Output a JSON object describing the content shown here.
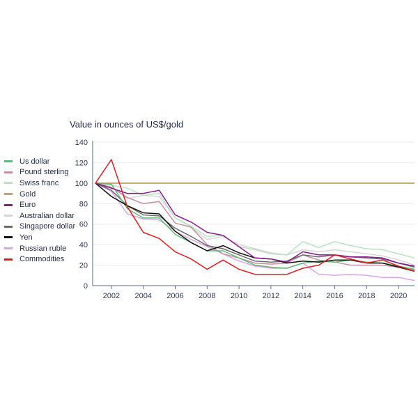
{
  "chart_data": {
    "type": "line",
    "title": "Value in ounces of US$/gold",
    "xlabel": "",
    "ylabel": "",
    "ylim": [
      0,
      140
    ],
    "xlim": [
      2001,
      2021
    ],
    "yticks": [
      "0",
      "20",
      "40",
      "60",
      "80",
      "100",
      "120",
      "140"
    ],
    "xticks": [
      "2002",
      "2004",
      "2006",
      "2008",
      "2010",
      "2012",
      "2014",
      "2016",
      "2018",
      "2020"
    ],
    "grid": true,
    "legend_position": "left",
    "x": [
      2001,
      2002,
      2003,
      2004,
      2005,
      2006,
      2007,
      2008,
      2009,
      2010,
      2011,
      2012,
      2013,
      2014,
      2015,
      2016,
      2017,
      2018,
      2019,
      2020,
      2021
    ],
    "series": [
      {
        "name": "Us dollar",
        "color": "#5dbb73",
        "values": [
          100,
          99,
          75,
          66,
          66,
          50,
          42,
          34,
          34,
          27,
          20,
          18,
          17,
          22,
          24,
          23,
          25,
          23,
          22,
          19,
          16
        ]
      },
      {
        "name": "Pound sterling",
        "color": "#c48f9f",
        "values": [
          100,
          96,
          86,
          80,
          82,
          61,
          57,
          40,
          31,
          27,
          22,
          21,
          22,
          30,
          25,
          23,
          20,
          20,
          20,
          18,
          15
        ]
      },
      {
        "name": "Swiss franc",
        "color": "#b9e2c4",
        "values": [
          100,
          98,
          95,
          88,
          90,
          66,
          58,
          48,
          49,
          38,
          35,
          31,
          30,
          43,
          37,
          43,
          39,
          36,
          35,
          31,
          27
        ]
      },
      {
        "name": "Gold",
        "color": "#c4a46b",
        "values": [
          100,
          100,
          100,
          100,
          100,
          100,
          100,
          100,
          100,
          100,
          100,
          100,
          100,
          100,
          100,
          100,
          100,
          100,
          100,
          100,
          100
        ]
      },
      {
        "name": "Euro",
        "color": "#8b1a8c",
        "values": [
          100,
          95,
          90,
          90,
          93,
          69,
          62,
          52,
          49,
          38,
          27,
          26,
          23,
          33,
          30,
          30,
          28,
          28,
          27,
          22,
          19
        ]
      },
      {
        "name": "Australian dollar",
        "color": "#d6d6d6",
        "values": [
          100,
          96,
          85,
          88,
          87,
          66,
          57,
          45,
          48,
          40,
          36,
          32,
          30,
          35,
          33,
          35,
          33,
          31,
          29,
          25,
          20
        ]
      },
      {
        "name": "Singapore dollar",
        "color": "#6b6b6b",
        "values": [
          100,
          93,
          78,
          69,
          68,
          56,
          48,
          39,
          36,
          30,
          24,
          23,
          24,
          30,
          28,
          30,
          28,
          27,
          26,
          22,
          18
        ]
      },
      {
        "name": "Yen",
        "color": "#111111",
        "values": [
          100,
          87,
          78,
          71,
          70,
          53,
          42,
          34,
          39,
          32,
          27,
          26,
          22,
          24,
          23,
          25,
          25,
          22,
          22,
          18,
          14
        ]
      },
      {
        "name": "Russian ruble",
        "color": "#dca4e8",
        "values": [
          100,
          92,
          70,
          65,
          64,
          53,
          45,
          38,
          31,
          24,
          19,
          17,
          17,
          22,
          11,
          10,
          11,
          10,
          8,
          8,
          5
        ]
      },
      {
        "name": "Commodities",
        "color": "#e31a1c",
        "values": [
          100,
          123,
          77,
          52,
          46,
          33,
          26,
          16,
          25,
          16,
          11,
          11,
          11,
          17,
          20,
          30,
          26,
          22,
          25,
          19,
          14
        ]
      }
    ]
  }
}
